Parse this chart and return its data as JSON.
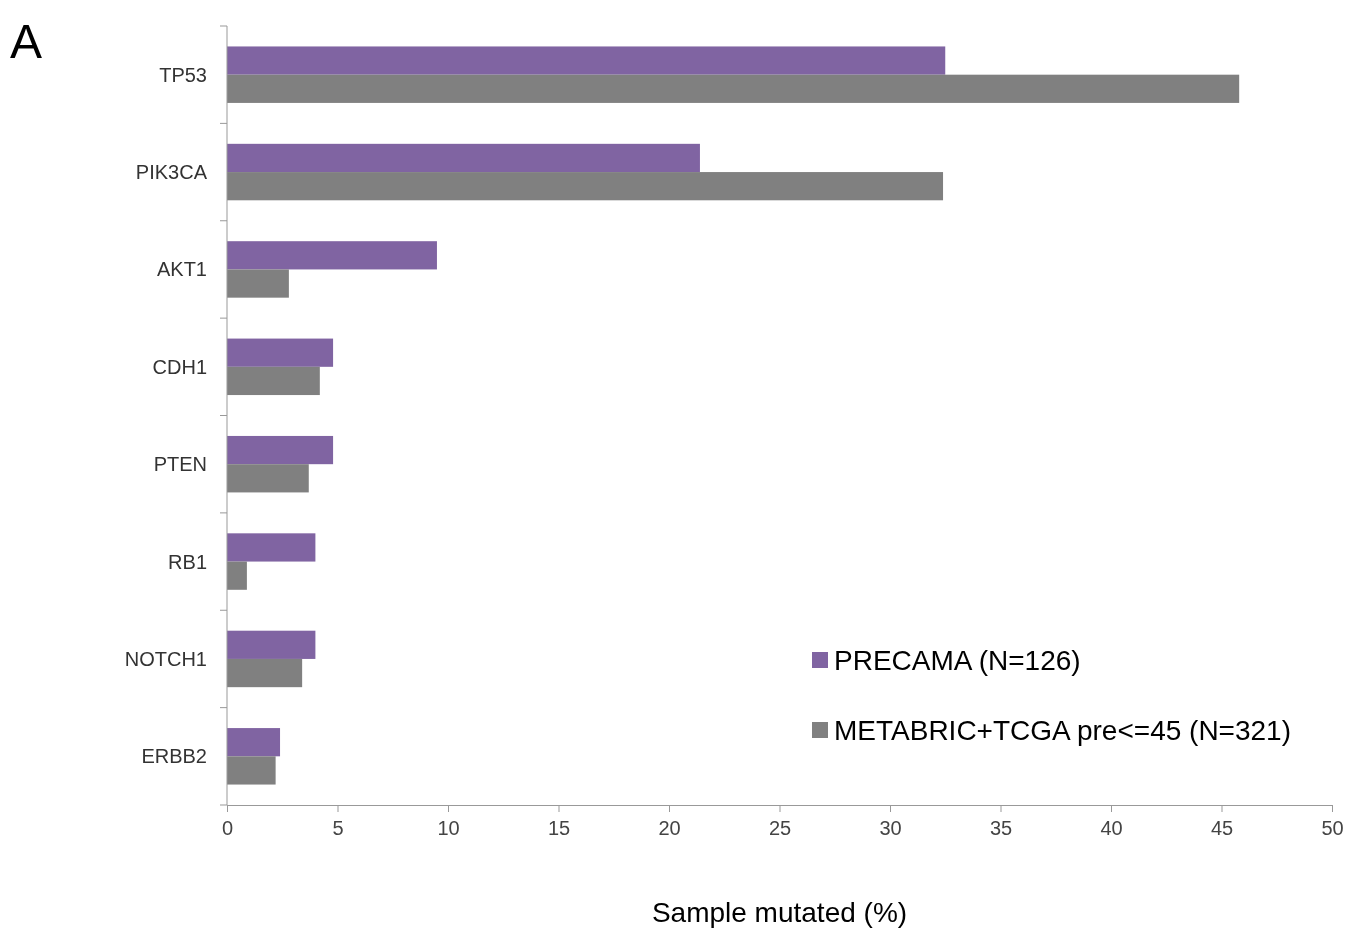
{
  "chart_data": {
    "type": "bar",
    "orientation": "horizontal",
    "annotations": [
      "A"
    ],
    "xlabel": "Sample mutated (%)",
    "categories": [
      "TP53",
      "PIK3CA",
      "AKT1",
      "CDH1",
      "PTEN",
      "RB1",
      "NOTCH1",
      "ERBB2"
    ],
    "series": [
      {
        "name": "PRECAMA (N=126)",
        "color": "#8064a2",
        "values": [
          32.5,
          21.4,
          9.5,
          4.8,
          4.8,
          4.0,
          4.0,
          2.4
        ]
      },
      {
        "name": "METABRIC+TCGA pre<=45 (N=321)",
        "color": "#808080",
        "values": [
          45.8,
          32.4,
          2.8,
          4.2,
          3.7,
          0.9,
          3.4,
          2.2
        ]
      }
    ],
    "xlim": [
      0,
      50
    ],
    "xticks": [
      0,
      5,
      10,
      15,
      20,
      25,
      30,
      35,
      40,
      45,
      50
    ],
    "grid": false,
    "legend": "bottom right"
  }
}
